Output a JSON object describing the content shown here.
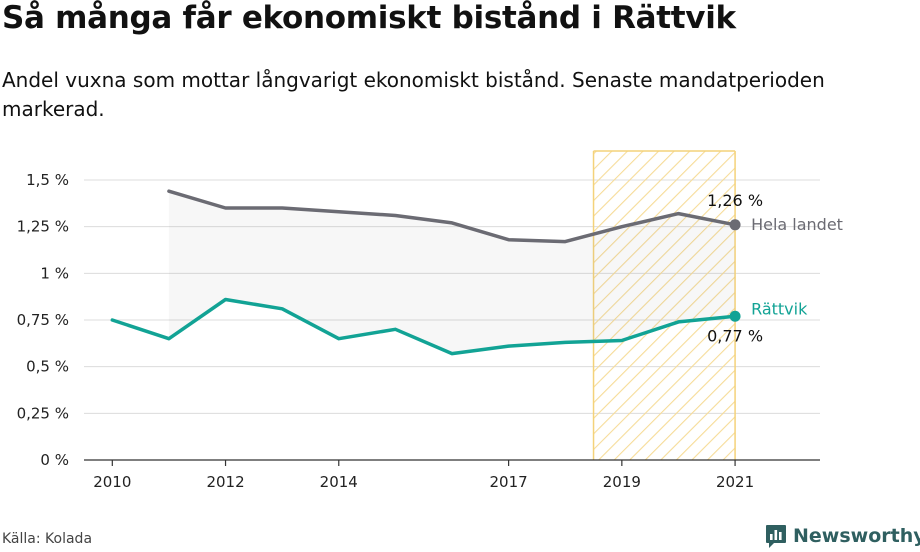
{
  "header": {
    "title": "Så många får ekonomiskt bistånd i Rättvik",
    "subtitle": "Andel vuxna som mottar långvarigt ekonomiskt bistånd. Senaste mandatperioden markerad."
  },
  "footer": {
    "source": "Källa: Kolada",
    "brand": "Newsworthy",
    "brand_icon": "newsworthy-logo-icon"
  },
  "colors": {
    "rattvik": "#12a395",
    "hela_landet": "#6b6b73",
    "highlight_stroke": "#f4d27a",
    "highlight_hatch": "#f6dc98",
    "brand": "#2f5f60"
  },
  "chart_data": {
    "type": "line",
    "x_ticks": [
      2010,
      2012,
      2014,
      2017,
      2019,
      2021
    ],
    "x_range": [
      2009.5,
      2022.5
    ],
    "y_ticks": [
      {
        "value": 0,
        "label": "0 %"
      },
      {
        "value": 0.25,
        "label": "0,25 %"
      },
      {
        "value": 0.5,
        "label": "0,5 %"
      },
      {
        "value": 0.75,
        "label": "0,75 %"
      },
      {
        "value": 1,
        "label": "1 %"
      },
      {
        "value": 1.25,
        "label": "1,25 %"
      },
      {
        "value": 1.5,
        "label": "1,5 %"
      }
    ],
    "ylim": [
      0,
      1.5
    ],
    "grid": true,
    "highlight_period": [
      2018.5,
      2021
    ],
    "series": [
      {
        "name": "Hela landet",
        "color": "#6b6b73",
        "x": [
          2011,
          2012,
          2013,
          2014,
          2015,
          2016,
          2017,
          2018,
          2019,
          2020,
          2021
        ],
        "values": [
          1.44,
          1.35,
          1.35,
          1.33,
          1.31,
          1.27,
          1.18,
          1.17,
          1.25,
          1.32,
          1.26
        ],
        "end_label": "1,26 %"
      },
      {
        "name": "Rättvik",
        "color": "#12a395",
        "x": [
          2010,
          2011,
          2012,
          2013,
          2014,
          2015,
          2016,
          2017,
          2018,
          2019,
          2020,
          2021
        ],
        "values": [
          0.75,
          0.65,
          0.86,
          0.81,
          0.65,
          0.7,
          0.57,
          0.61,
          0.63,
          0.64,
          0.74,
          0.77
        ],
        "end_label": "0,77 %"
      }
    ]
  }
}
